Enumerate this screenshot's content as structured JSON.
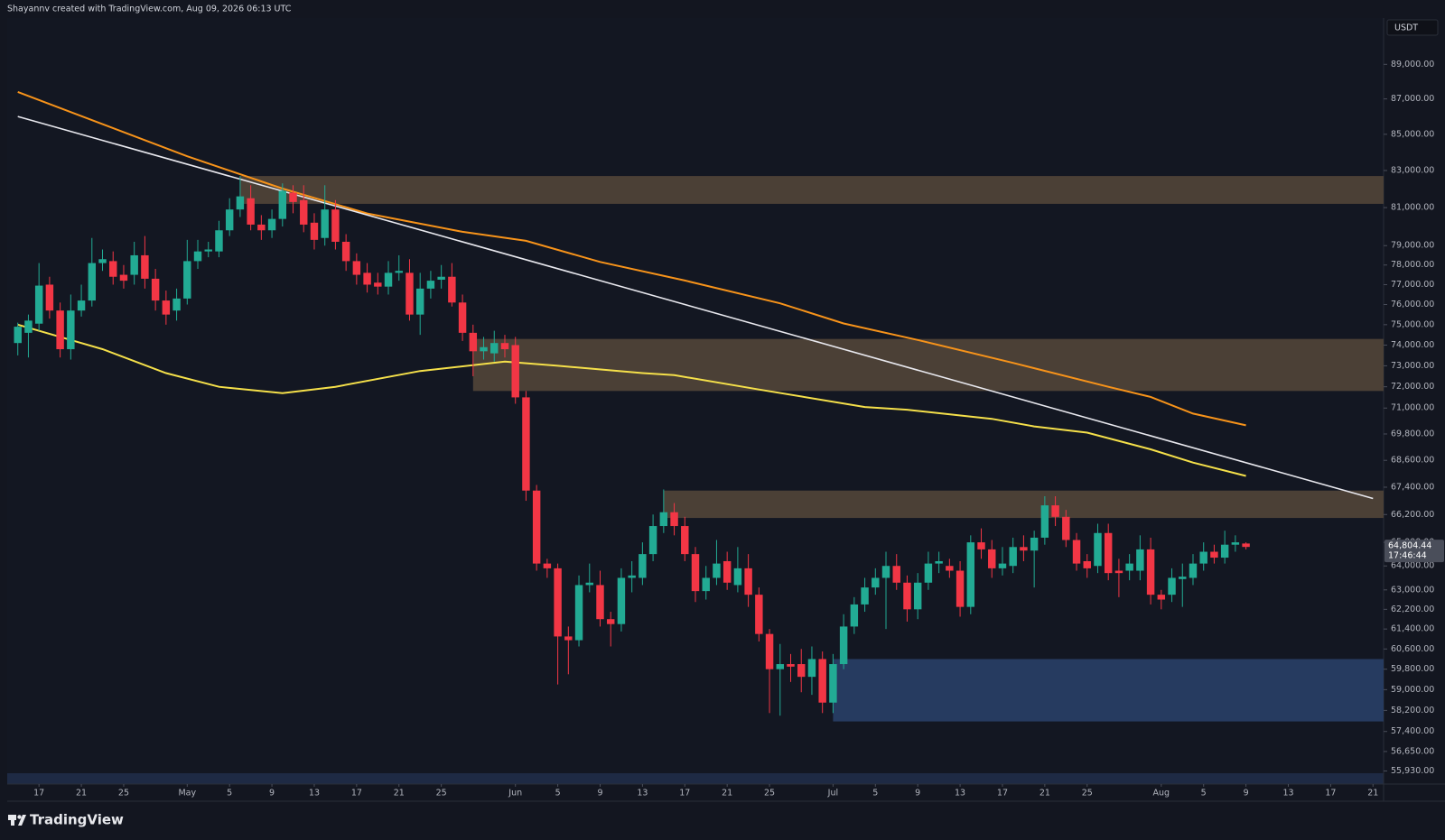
{
  "chart_data": {
    "type": "candlestick",
    "attribution": "Shayannv created with TradingView.com, Aug 09, 2026 06:13 UTC",
    "currency": "USDT",
    "brand": "TradingView",
    "log_scale": true,
    "grid": false,
    "up_color": "#22ab94",
    "down_color": "#f23645",
    "xlim": [
      "2026-04-14",
      "2026-08-22"
    ],
    "ylim": [
      55450,
      91750
    ],
    "yticks": [
      {
        "value": 89000,
        "label": "89,000.00"
      },
      {
        "value": 87000,
        "label": "87,000.00"
      },
      {
        "value": 85000,
        "label": "85,000.00"
      },
      {
        "value": 83000,
        "label": "83,000.00"
      },
      {
        "value": 81000,
        "label": "81,000.00"
      },
      {
        "value": 79000,
        "label": "79,000.00"
      },
      {
        "value": 78000,
        "label": "78,000.00"
      },
      {
        "value": 77000,
        "label": "77,000.00"
      },
      {
        "value": 76000,
        "label": "76,000.00"
      },
      {
        "value": 75000,
        "label": "75,000.00"
      },
      {
        "value": 74000,
        "label": "74,000.00"
      },
      {
        "value": 73000,
        "label": "73,000.00"
      },
      {
        "value": 72000,
        "label": "72,000.00"
      },
      {
        "value": 71000,
        "label": "71,000.00"
      },
      {
        "value": 69800,
        "label": "69,800.00"
      },
      {
        "value": 68600,
        "label": "68,600.00"
      },
      {
        "value": 67400,
        "label": "67,400.00"
      },
      {
        "value": 66200,
        "label": "66,200.00"
      },
      {
        "value": 65000,
        "label": "65,000.00"
      },
      {
        "value": 64000,
        "label": "64,000.00"
      },
      {
        "value": 63000,
        "label": "63,000.00"
      },
      {
        "value": 62200,
        "label": "62,200.00"
      },
      {
        "value": 61400,
        "label": "61,400.00"
      },
      {
        "value": 60600,
        "label": "60,600.00"
      },
      {
        "value": 59800,
        "label": "59,800.00"
      },
      {
        "value": 59000,
        "label": "59,000.00"
      },
      {
        "value": 58200,
        "label": "58,200.00"
      },
      {
        "value": 57400,
        "label": "57,400.00"
      },
      {
        "value": 56650,
        "label": "56,650.00"
      },
      {
        "value": 55930,
        "label": "55,930.00"
      }
    ],
    "xticks": [
      {
        "value": "2026-04-17",
        "label": "17"
      },
      {
        "value": "2026-04-21",
        "label": "21"
      },
      {
        "value": "2026-04-25",
        "label": "25"
      },
      {
        "value": "2026-05-01",
        "label": "May"
      },
      {
        "value": "2026-05-05",
        "label": "5"
      },
      {
        "value": "2026-05-09",
        "label": "9"
      },
      {
        "value": "2026-05-13",
        "label": "13"
      },
      {
        "value": "2026-05-17",
        "label": "17"
      },
      {
        "value": "2026-05-21",
        "label": "21"
      },
      {
        "value": "2026-05-25",
        "label": "25"
      },
      {
        "value": "2026-06-01",
        "label": "Jun"
      },
      {
        "value": "2026-06-05",
        "label": "5"
      },
      {
        "value": "2026-06-09",
        "label": "9"
      },
      {
        "value": "2026-06-13",
        "label": "13"
      },
      {
        "value": "2026-06-17",
        "label": "17"
      },
      {
        "value": "2026-06-21",
        "label": "21"
      },
      {
        "value": "2026-06-25",
        "label": "25"
      },
      {
        "value": "2026-07-01",
        "label": "Jul"
      },
      {
        "value": "2026-07-05",
        "label": "5"
      },
      {
        "value": "2026-07-09",
        "label": "9"
      },
      {
        "value": "2026-07-13",
        "label": "13"
      },
      {
        "value": "2026-07-17",
        "label": "17"
      },
      {
        "value": "2026-07-21",
        "label": "21"
      },
      {
        "value": "2026-07-25",
        "label": "25"
      },
      {
        "value": "2026-08-01",
        "label": "Aug"
      },
      {
        "value": "2026-08-05",
        "label": "5"
      },
      {
        "value": "2026-08-09",
        "label": "9"
      },
      {
        "value": "2026-08-13",
        "label": "13"
      },
      {
        "value": "2026-08-17",
        "label": "17"
      },
      {
        "value": "2026-08-21",
        "label": "21"
      }
    ],
    "x": [
      "2026-04-15",
      "2026-04-16",
      "2026-04-17",
      "2026-04-18",
      "2026-04-19",
      "2026-04-20",
      "2026-04-21",
      "2026-04-22",
      "2026-04-23",
      "2026-04-24",
      "2026-04-25",
      "2026-04-26",
      "2026-04-27",
      "2026-04-28",
      "2026-04-29",
      "2026-04-30",
      "2026-05-01",
      "2026-05-02",
      "2026-05-03",
      "2026-05-04",
      "2026-05-05",
      "2026-05-06",
      "2026-05-07",
      "2026-05-08",
      "2026-05-09",
      "2026-05-10",
      "2026-05-11",
      "2026-05-12",
      "2026-05-13",
      "2026-05-14",
      "2026-05-15",
      "2026-05-16",
      "2026-05-17",
      "2026-05-18",
      "2026-05-19",
      "2026-05-20",
      "2026-05-21",
      "2026-05-22",
      "2026-05-23",
      "2026-05-24",
      "2026-05-25",
      "2026-05-26",
      "2026-05-27",
      "2026-05-28",
      "2026-05-29",
      "2026-05-30",
      "2026-05-31",
      "2026-06-01",
      "2026-06-02",
      "2026-06-03",
      "2026-06-04",
      "2026-06-05",
      "2026-06-06",
      "2026-06-07",
      "2026-06-08",
      "2026-06-09",
      "2026-06-10",
      "2026-06-11",
      "2026-06-12",
      "2026-06-13",
      "2026-06-14",
      "2026-06-15",
      "2026-06-16",
      "2026-06-17",
      "2026-06-18",
      "2026-06-19",
      "2026-06-20",
      "2026-06-21",
      "2026-06-22",
      "2026-06-23",
      "2026-06-24",
      "2026-06-25",
      "2026-06-26",
      "2026-06-27",
      "2026-06-28",
      "2026-06-29",
      "2026-06-30",
      "2026-07-01",
      "2026-07-02",
      "2026-07-03",
      "2026-07-04",
      "2026-07-05",
      "2026-07-06",
      "2026-07-07",
      "2026-07-08",
      "2026-07-09",
      "2026-07-10",
      "2026-07-11",
      "2026-07-12",
      "2026-07-13",
      "2026-07-14",
      "2026-07-15",
      "2026-07-16",
      "2026-07-17",
      "2026-07-18",
      "2026-07-19",
      "2026-07-20",
      "2026-07-21",
      "2026-07-22",
      "2026-07-23",
      "2026-07-24",
      "2026-07-25",
      "2026-07-26",
      "2026-07-27",
      "2026-07-28",
      "2026-07-29",
      "2026-07-30",
      "2026-07-31",
      "2026-08-01",
      "2026-08-02",
      "2026-08-03",
      "2026-08-04",
      "2026-08-05",
      "2026-08-06",
      "2026-08-07",
      "2026-08-08",
      "2026-08-09"
    ],
    "open": [
      74100,
      74600,
      75050,
      77000,
      75700,
      73800,
      75700,
      76200,
      78100,
      78200,
      77500,
      77500,
      78500,
      77300,
      76200,
      75700,
      76300,
      78200,
      78700,
      78700,
      79800,
      80900,
      81500,
      80100,
      79800,
      80400,
      81800,
      81400,
      80200,
      79400,
      80900,
      79200,
      78200,
      77600,
      77100,
      76900,
      77600,
      77600,
      75500,
      76800,
      77250,
      77400,
      76100,
      74600,
      73700,
      73600,
      74100,
      74000,
      71500,
      67250,
      64100,
      63900,
      61100,
      60950,
      63200,
      63200,
      61800,
      61600,
      63500,
      63500,
      64500,
      65700,
      66300,
      65700,
      64500,
      62950,
      63500,
      64200,
      63200,
      63900,
      62800,
      61200,
      59800,
      60000,
      60000,
      59500,
      60200,
      58500,
      60000,
      61500,
      62400,
      63100,
      63500,
      64000,
      63300,
      62200,
      63300,
      64100,
      64000,
      63800,
      62300,
      65000,
      64700,
      63900,
      64000,
      64800,
      64650,
      65200,
      66600,
      66100,
      65100,
      64200,
      64000,
      65400,
      63800,
      63800,
      63800,
      64700,
      62800,
      62800,
      63450,
      63500,
      64100,
      64600,
      64350,
      64900,
      64950
    ],
    "high": [
      75100,
      75500,
      78100,
      77400,
      76100,
      76500,
      77000,
      79400,
      78800,
      78700,
      78000,
      79200,
      79500,
      77800,
      76700,
      76800,
      79300,
      79300,
      79200,
      80300,
      81500,
      82700,
      82200,
      80600,
      80900,
      82300,
      82200,
      82200,
      80700,
      82200,
      81400,
      79600,
      78600,
      78100,
      77600,
      78200,
      78500,
      78300,
      77600,
      77700,
      78000,
      78100,
      76500,
      75000,
      74400,
      74700,
      74500,
      74400,
      71800,
      67500,
      64300,
      64100,
      61500,
      63600,
      64100,
      63800,
      62100,
      63900,
      64200,
      65000,
      66200,
      67300,
      66700,
      66100,
      64800,
      64000,
      65100,
      64600,
      64800,
      64500,
      63100,
      61400,
      60800,
      60400,
      60600,
      60700,
      60500,
      60400,
      62000,
      62700,
      63500,
      63900,
      64600,
      64500,
      63600,
      63700,
      64600,
      64600,
      64300,
      64200,
      65300,
      65600,
      65100,
      64800,
      65200,
      65300,
      65500,
      67000,
      67000,
      66400,
      65400,
      64500,
      65800,
      65800,
      64300,
      64500,
      65300,
      65200,
      63000,
      63900,
      64100,
      64500,
      65000,
      64900,
      65500,
      65300,
      65000
    ],
    "low": [
      73500,
      73400,
      74700,
      75300,
      73400,
      73300,
      75400,
      75900,
      77700,
      77000,
      76800,
      77000,
      76800,
      75700,
      75000,
      75200,
      76000,
      77800,
      78400,
      78400,
      79500,
      80500,
      79800,
      79300,
      79400,
      80000,
      80700,
      79700,
      78800,
      79000,
      78800,
      77700,
      77000,
      76600,
      76500,
      76500,
      77200,
      75200,
      74500,
      76300,
      76800,
      75900,
      74200,
      72500,
      73300,
      73200,
      73400,
      71200,
      66800,
      63800,
      63500,
      59200,
      59600,
      60700,
      62900,
      61500,
      60700,
      61300,
      62900,
      63200,
      64200,
      65400,
      65300,
      64200,
      62500,
      62600,
      63200,
      63000,
      62900,
      62300,
      60900,
      58100,
      58000,
      59300,
      58900,
      58800,
      58100,
      58100,
      59800,
      61200,
      62100,
      62800,
      61400,
      63000,
      61700,
      61800,
      63000,
      63700,
      63500,
      61900,
      62000,
      64300,
      63500,
      63600,
      63700,
      64200,
      63100,
      64900,
      65700,
      64800,
      63800,
      63500,
      63700,
      63400,
      62700,
      63400,
      63400,
      62400,
      62200,
      62500,
      62300,
      63200,
      63800,
      64100,
      64100,
      64600,
      64700
    ],
    "close": [
      74900,
      75200,
      76950,
      75700,
      73800,
      75700,
      76200,
      78100,
      78300,
      77400,
      77200,
      78500,
      77300,
      76200,
      75500,
      76300,
      78200,
      78700,
      78800,
      79800,
      80900,
      81600,
      80100,
      79800,
      80400,
      81900,
      81300,
      80100,
      79300,
      80900,
      79200,
      78200,
      77500,
      77000,
      76900,
      77600,
      77700,
      75500,
      76800,
      77200,
      77400,
      76100,
      74600,
      73700,
      73900,
      74100,
      73800,
      71500,
      67250,
      64100,
      63900,
      61100,
      60950,
      63200,
      63300,
      61800,
      61600,
      63500,
      63600,
      64500,
      65700,
      66300,
      65700,
      64500,
      62950,
      63500,
      64100,
      63300,
      63900,
      62800,
      61200,
      59800,
      60000,
      59900,
      59500,
      60200,
      58500,
      60000,
      61500,
      62400,
      63100,
      63500,
      64000,
      63300,
      62200,
      63300,
      64100,
      64200,
      63800,
      62300,
      65000,
      64700,
      63900,
      64100,
      64800,
      64650,
      65200,
      66600,
      66100,
      65100,
      64100,
      63900,
      65400,
      63700,
      63700,
      64100,
      64700,
      62800,
      62600,
      63500,
      63550,
      64100,
      64600,
      64350,
      64900,
      65000,
      64804.44
    ],
    "last_price": {
      "value": 64804.44,
      "label": "64,804.44"
    },
    "countdown": "17:46:44",
    "zones": [
      {
        "x0": "2026-05-06",
        "x1": "2026-08-22",
        "y0": 81200,
        "y1": 82700,
        "color": "#4b4036"
      },
      {
        "x0": "2026-05-28",
        "x1": "2026-08-22",
        "y0": 71800,
        "y1": 74300,
        "color": "#4b4036"
      },
      {
        "x0": "2026-06-15",
        "x1": "2026-08-22",
        "y0": 66050,
        "y1": 67250,
        "color": "#4b4036"
      },
      {
        "x0": "2026-07-01",
        "x1": "2026-08-22",
        "y0": 57780,
        "y1": 60200,
        "color": "#263b60"
      }
    ],
    "lines": [
      {
        "color": "#f7931a",
        "width": 2,
        "x": [
          "2026-04-15",
          "2026-04-23",
          "2026-05-01",
          "2026-05-10",
          "2026-05-18",
          "2026-05-27",
          "2026-06-02",
          "2026-06-09",
          "2026-06-17",
          "2026-06-26",
          "2026-07-02",
          "2026-07-09",
          "2026-07-18",
          "2026-07-27",
          "2026-07-31",
          "2026-08-04",
          "2026-08-09"
        ],
        "values": [
          87400,
          85570,
          83780,
          82020,
          80690,
          79720,
          79250,
          78160,
          77210,
          76060,
          75060,
          74250,
          73140,
          72000,
          71520,
          70740,
          70200
        ]
      },
      {
        "color": "#f5e04a",
        "width": 2,
        "x": [
          "2026-04-15",
          "2026-04-23",
          "2026-04-29",
          "2026-05-04",
          "2026-05-10",
          "2026-05-15",
          "2026-05-23",
          "2026-05-31",
          "2026-06-05",
          "2026-06-13",
          "2026-06-16",
          "2026-06-24",
          "2026-07-04",
          "2026-07-08",
          "2026-07-16",
          "2026-07-20",
          "2026-07-25",
          "2026-07-31",
          "2026-08-04",
          "2026-08-09"
        ],
        "values": [
          75000,
          73800,
          72650,
          72000,
          71700,
          72000,
          72750,
          73200,
          73000,
          72650,
          72550,
          71870,
          71050,
          70920,
          70500,
          70150,
          69860,
          69100,
          68500,
          67900
        ]
      },
      {
        "color": "#e8e8ee",
        "width": 1.6,
        "x": [
          "2026-04-15",
          "2026-08-21"
        ],
        "values": [
          86000,
          66900
        ]
      }
    ]
  }
}
